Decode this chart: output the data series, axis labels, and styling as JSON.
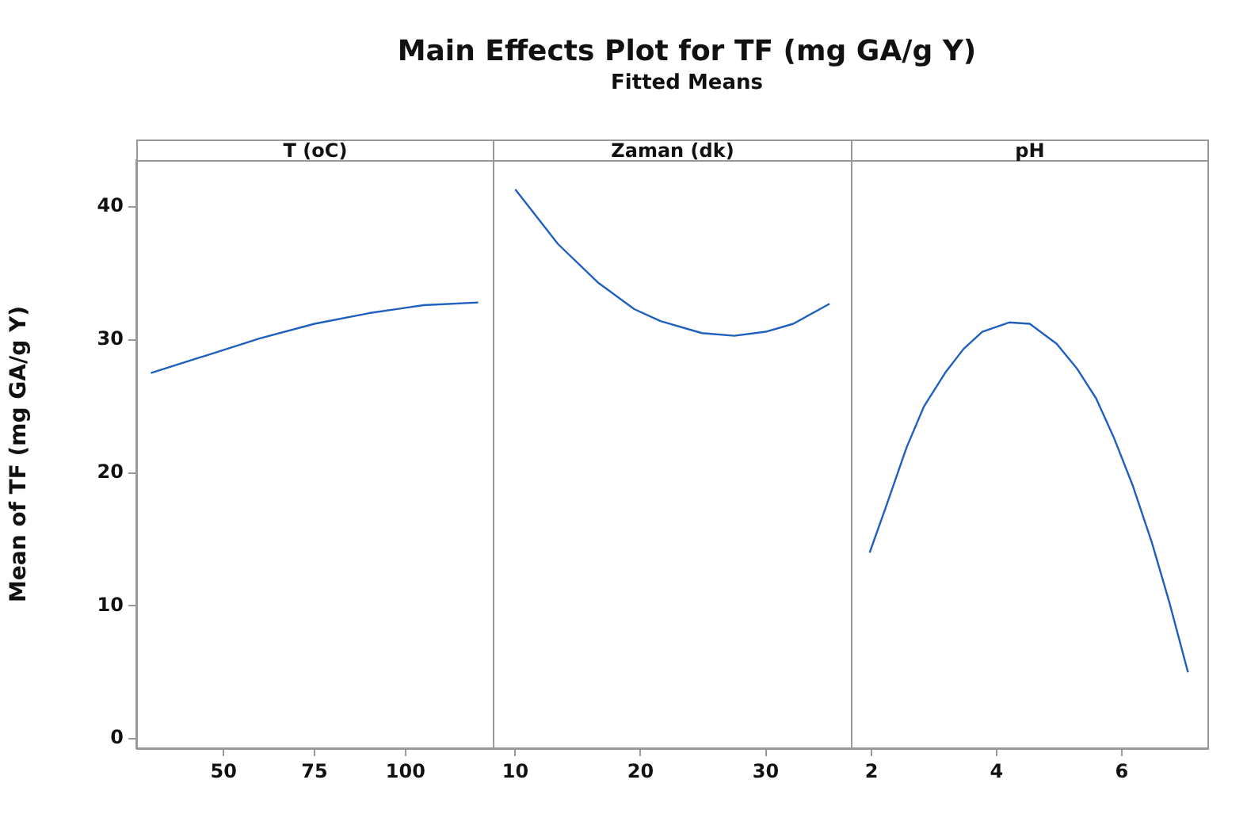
{
  "chart_data": [
    {
      "type": "line",
      "title": "T (oC)",
      "annotations": [
        "Main Effects Plot for TF (mg GA/g Y)",
        "Fitted Means"
      ],
      "ylabel": "Mean of TF (mg GA/g Y)",
      "x": [
        30,
        45,
        60,
        75,
        90,
        105,
        120
      ],
      "xlim": [
        26,
        124
      ],
      "xticks": [
        50,
        75,
        100
      ],
      "ylim": [
        -0.7,
        43.5
      ],
      "yticks": [
        0,
        10,
        20,
        30,
        40
      ],
      "grid": false,
      "legend": false,
      "marker": "none",
      "series": [
        {
          "color": "#1f5fbf",
          "values": [
            27.5,
            28.8,
            30.1,
            31.2,
            32.0,
            32.6,
            32.8
          ]
        }
      ]
    },
    {
      "type": "line",
      "title": "Zaman (dk)",
      "x": [
        10,
        13.4,
        16.6,
        19.5,
        21.6,
        24.9,
        27.5,
        30,
        32.2,
        35.1
      ],
      "xlim": [
        8.2,
        36.8
      ],
      "xticks": [
        10,
        20,
        30
      ],
      "ylim": [
        -0.7,
        43.5
      ],
      "tick_labels": "x",
      "grid": false,
      "legend": false,
      "marker": "none",
      "series": [
        {
          "color": "#1f5fbf",
          "values": [
            41.3,
            37.2,
            34.3,
            32.3,
            31.4,
            30.5,
            30.3,
            30.6,
            31.2,
            32.7
          ]
        }
      ]
    },
    {
      "type": "line",
      "title": "pH",
      "x": [
        1.97,
        2.25,
        2.56,
        2.84,
        3.19,
        3.47,
        3.77,
        4.2,
        4.53,
        4.96,
        5.29,
        5.59,
        5.87,
        6.18,
        6.48,
        6.76,
        7.06
      ],
      "xlim": [
        1.67,
        7.37
      ],
      "xticks": [
        2,
        4,
        6
      ],
      "ylim": [
        -0.7,
        43.5
      ],
      "tick_labels": "x",
      "grid": false,
      "legend": false,
      "marker": "none",
      "series": [
        {
          "color": "#1f5fbf",
          "values": [
            14.0,
            17.7,
            21.9,
            25.0,
            27.6,
            29.3,
            30.6,
            31.3,
            31.2,
            29.7,
            27.8,
            25.6,
            22.7,
            19.0,
            14.8,
            10.3,
            5.0
          ]
        }
      ]
    }
  ]
}
